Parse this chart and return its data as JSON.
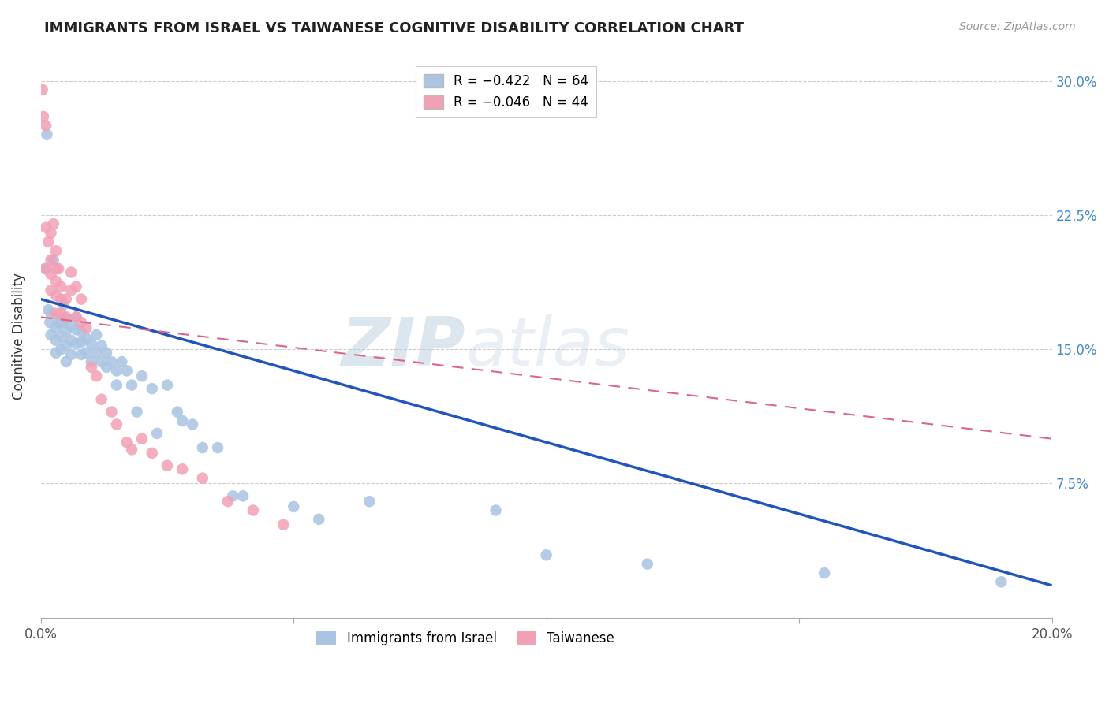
{
  "title": "IMMIGRANTS FROM ISRAEL VS TAIWANESE COGNITIVE DISABILITY CORRELATION CHART",
  "source": "Source: ZipAtlas.com",
  "ylabel": "Cognitive Disability",
  "xlim": [
    0.0,
    0.2
  ],
  "ylim": [
    0.0,
    0.315
  ],
  "yticks": [
    0.075,
    0.15,
    0.225,
    0.3
  ],
  "ytick_labels": [
    "7.5%",
    "15.0%",
    "22.5%",
    "30.0%"
  ],
  "xticks": [
    0.0,
    0.05,
    0.1,
    0.15,
    0.2
  ],
  "xtick_labels": [
    "0.0%",
    "",
    "",
    "",
    "20.0%"
  ],
  "legend_r1": "R = −0.422",
  "legend_n1": "N = 64",
  "legend_r2": "R = −0.046",
  "legend_n2": "N = 44",
  "blue_color": "#aac4e2",
  "pink_color": "#f2a0b5",
  "blue_line_color": "#2255bb",
  "pink_line_color": "#dd6688",
  "watermark_zip": "ZIP",
  "watermark_atlas": "atlas",
  "blue_line_x0": 0.0,
  "blue_line_y0": 0.178,
  "blue_line_x1": 0.2,
  "blue_line_y1": 0.018,
  "pink_line_x0": 0.0,
  "pink_line_y0": 0.168,
  "pink_line_x1": 0.2,
  "pink_line_y1": 0.1,
  "blue_x": [
    0.0008,
    0.0012,
    0.0015,
    0.0018,
    0.002,
    0.002,
    0.0025,
    0.003,
    0.003,
    0.003,
    0.0035,
    0.004,
    0.004,
    0.004,
    0.0045,
    0.005,
    0.005,
    0.005,
    0.005,
    0.006,
    0.006,
    0.006,
    0.007,
    0.007,
    0.007,
    0.008,
    0.008,
    0.008,
    0.009,
    0.009,
    0.01,
    0.01,
    0.011,
    0.011,
    0.012,
    0.012,
    0.013,
    0.013,
    0.014,
    0.015,
    0.015,
    0.016,
    0.017,
    0.018,
    0.019,
    0.02,
    0.022,
    0.023,
    0.025,
    0.027,
    0.028,
    0.03,
    0.032,
    0.035,
    0.038,
    0.04,
    0.05,
    0.055,
    0.065,
    0.09,
    0.1,
    0.12,
    0.155,
    0.19
  ],
  "blue_y": [
    0.195,
    0.27,
    0.172,
    0.165,
    0.17,
    0.158,
    0.2,
    0.162,
    0.155,
    0.148,
    0.165,
    0.165,
    0.157,
    0.15,
    0.175,
    0.167,
    0.16,
    0.152,
    0.143,
    0.163,
    0.155,
    0.147,
    0.168,
    0.161,
    0.153,
    0.16,
    0.154,
    0.147,
    0.156,
    0.148,
    0.153,
    0.143,
    0.158,
    0.148,
    0.152,
    0.143,
    0.148,
    0.14,
    0.143,
    0.138,
    0.13,
    0.143,
    0.138,
    0.13,
    0.115,
    0.135,
    0.128,
    0.103,
    0.13,
    0.115,
    0.11,
    0.108,
    0.095,
    0.095,
    0.068,
    0.068,
    0.062,
    0.055,
    0.065,
    0.06,
    0.035,
    0.03,
    0.025,
    0.02
  ],
  "pink_x": [
    0.0003,
    0.0005,
    0.001,
    0.001,
    0.001,
    0.0015,
    0.002,
    0.002,
    0.002,
    0.002,
    0.0025,
    0.003,
    0.003,
    0.003,
    0.003,
    0.003,
    0.0035,
    0.004,
    0.004,
    0.004,
    0.005,
    0.005,
    0.006,
    0.006,
    0.007,
    0.007,
    0.008,
    0.008,
    0.009,
    0.01,
    0.011,
    0.012,
    0.014,
    0.015,
    0.017,
    0.018,
    0.02,
    0.022,
    0.025,
    0.028,
    0.032,
    0.037,
    0.042,
    0.048
  ],
  "pink_y": [
    0.295,
    0.28,
    0.218,
    0.275,
    0.195,
    0.21,
    0.215,
    0.2,
    0.192,
    0.183,
    0.22,
    0.205,
    0.195,
    0.188,
    0.18,
    0.17,
    0.195,
    0.185,
    0.178,
    0.17,
    0.178,
    0.168,
    0.193,
    0.183,
    0.185,
    0.168,
    0.178,
    0.165,
    0.162,
    0.14,
    0.135,
    0.122,
    0.115,
    0.108,
    0.098,
    0.094,
    0.1,
    0.092,
    0.085,
    0.083,
    0.078,
    0.065,
    0.06,
    0.052
  ]
}
